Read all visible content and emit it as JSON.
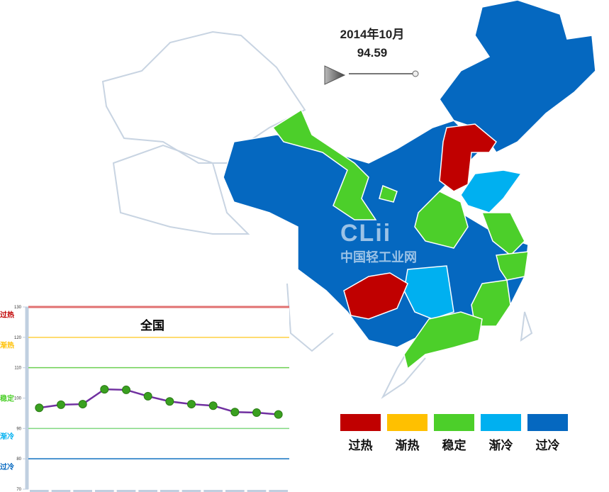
{
  "header": {
    "period": "2014年10月",
    "value": "94.59"
  },
  "watermark": {
    "logo": "CLii",
    "text": "中国轻工业网"
  },
  "colors": {
    "过热": "#c00000",
    "渐热": "#ffc000",
    "稳定": "#4ccf2a",
    "渐冷": "#00b0f0",
    "过冷": "#0568c0"
  },
  "legend": [
    {
      "label": "过热",
      "color": "#c00000"
    },
    {
      "label": "渐热",
      "color": "#ffc000"
    },
    {
      "label": "稳定",
      "color": "#4ccf2a"
    },
    {
      "label": "渐冷",
      "color": "#00b0f0"
    },
    {
      "label": "过冷",
      "color": "#0568c0"
    }
  ],
  "chart_data": {
    "type": "line",
    "title": "全国",
    "ylim": [
      70,
      130
    ],
    "yticks": [
      130,
      120,
      110,
      100,
      90,
      80,
      70
    ],
    "bands": [
      {
        "label": "过热",
        "color": "#c00000",
        "line": 130,
        "line_color": "#e07070"
      },
      {
        "label": "渐热",
        "color": "#ffc000",
        "line": 120,
        "line_color": "#ffd040"
      },
      {
        "label": "稳定",
        "color": "#4ccf2a",
        "line": 110,
        "line_color": "#6cd050"
      },
      {
        "label": "渐冷",
        "color": "#00b0f0",
        "line": 90,
        "line_color": "#80d880"
      },
      {
        "label": "过冷",
        "color": "#0568c0",
        "line": 80,
        "line_color": "#1070c0"
      }
    ],
    "band_label_values": [
      127.5,
      117.5,
      100,
      87.5,
      77.5
    ],
    "series": [
      {
        "values": [
          96.8,
          97.8,
          98.0,
          102.9,
          102.7,
          100.6,
          98.9,
          98.0,
          97.5,
          95.4,
          95.2,
          94.59
        ],
        "color": "#7030a0",
        "marker_color": "#3aa020"
      }
    ]
  }
}
